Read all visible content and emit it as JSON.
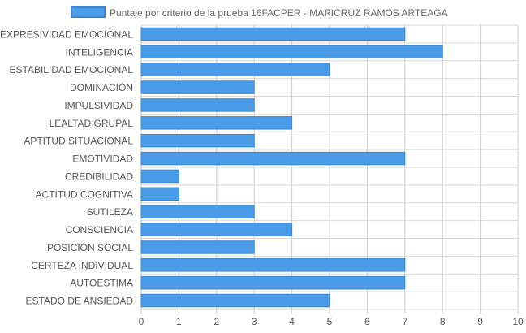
{
  "chart_data": {
    "type": "bar",
    "orientation": "horizontal",
    "categories": [
      "EXPRESIVIDAD EMOCIONAL",
      "INTELIGENCIA",
      "ESTABILIDAD EMOCIONAL",
      "DOMINACIÓN",
      "IMPULSIVIDAD",
      "LEALTAD GRUPAL",
      "APTITUD SITUACIONAL",
      "EMOTIVIDAD",
      "CREDIBILIDAD",
      "ACTITUD COGNITIVA",
      "SUTILEZA",
      "CONSCIENCIA",
      "POSICIÓN SOCIAL",
      "CERTEZA INDIVIDUAL",
      "AUTOESTIMA",
      "ESTADO DE ANSIEDAD"
    ],
    "series": [
      {
        "name": "Puntaje por criterio de la prueba 16FACPER - MARICRUZ RAMOS ARTEAGA",
        "values": [
          7,
          8,
          5,
          3,
          3,
          4,
          3,
          7,
          1,
          1,
          3,
          4,
          3,
          7,
          7,
          5
        ]
      }
    ],
    "xlim": [
      0,
      10
    ],
    "xticks": [
      "0",
      "1",
      "2",
      "3",
      "4",
      "5",
      "6",
      "7",
      "8",
      "9",
      "10"
    ],
    "grid": true,
    "legend_position": "top",
    "colors": {
      "bar_fill": "#4a9ce8",
      "bar_stroke": "#3a86d4",
      "grid": "#d9d9d9"
    }
  }
}
